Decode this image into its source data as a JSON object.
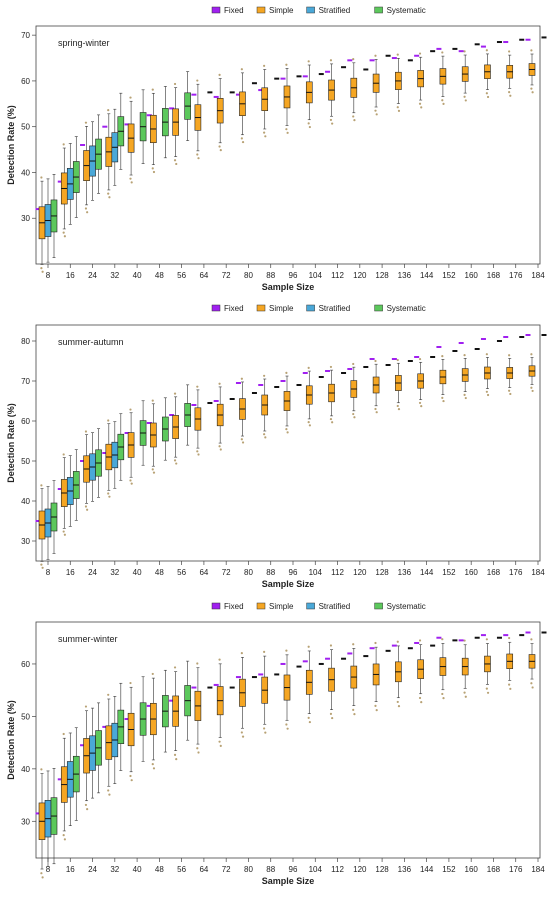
{
  "chart_data": [
    {
      "type": "boxplot",
      "panel_label": "spring-winter",
      "xlabel": "Sample Size",
      "ylabel": "Detection Rate (%)",
      "ylim": [
        20,
        72
      ],
      "yticks": [
        30,
        40,
        50,
        60,
        70
      ],
      "grid": false,
      "legend_position": "top-center",
      "legend": [
        {
          "name": "Fixed",
          "color": "#a020f0"
        },
        {
          "name": "Simple",
          "color": "#f5a623"
        },
        {
          "name": "Stratified",
          "color": "#4aa8d8"
        },
        {
          "name": "Systematic",
          "color": "#5cc85c"
        }
      ],
      "categories": [
        "8",
        "16",
        "24",
        "32",
        "40",
        "48",
        "56",
        "64",
        "72",
        "80",
        "88",
        "96",
        "104",
        "112",
        "120",
        "128",
        "136",
        "144",
        "152",
        "160",
        "168",
        "176",
        "184"
      ],
      "fixed": [
        32,
        38,
        46,
        50,
        50.5,
        52.5,
        54,
        57,
        56.5,
        57,
        58,
        60.5,
        61,
        62,
        64.5,
        64.5,
        65,
        65.5,
        67,
        66.5,
        67.5,
        68.5,
        69
      ],
      "series": [
        {
          "name": "Simple",
          "median": [
            29,
            36.5,
            41.5,
            44.5,
            47.5,
            49.5,
            51,
            52,
            53.5,
            55,
            56,
            56.5,
            57.5,
            58,
            58.5,
            59.5,
            60,
            60.5,
            61,
            61.5,
            62,
            62,
            62.5
          ]
        },
        {
          "name": "Stratified",
          "median": [
            29.5,
            37.5,
            42.5,
            45.5,
            null,
            null,
            null,
            null,
            null,
            null,
            null,
            null,
            null,
            null,
            null,
            null,
            null,
            null,
            null,
            null,
            null,
            null,
            null
          ]
        },
        {
          "name": "Systematic",
          "median": [
            30.5,
            39,
            44,
            49,
            50,
            51,
            54.5,
            57.5,
            57.5,
            59.5,
            60.5,
            61,
            61.5,
            63,
            62.5,
            65.5,
            64.5,
            66.5,
            67,
            68,
            68.5,
            69,
            69.5
          ]
        }
      ]
    },
    {
      "type": "boxplot",
      "panel_label": "summer-autumn",
      "xlabel": "Sample Size",
      "ylabel": "Detection Rate (%)",
      "ylim": [
        25,
        84
      ],
      "yticks": [
        30,
        40,
        50,
        60,
        70,
        80
      ],
      "grid": false,
      "legend_position": "top-center",
      "legend": [
        {
          "name": "Fixed",
          "color": "#a020f0"
        },
        {
          "name": "Simple",
          "color": "#f5a623"
        },
        {
          "name": "Stratified",
          "color": "#4aa8d8"
        },
        {
          "name": "Systematic",
          "color": "#5cc85c"
        }
      ],
      "categories": [
        "8",
        "16",
        "24",
        "32",
        "40",
        "48",
        "56",
        "64",
        "72",
        "80",
        "88",
        "96",
        "104",
        "112",
        "120",
        "128",
        "136",
        "144",
        "152",
        "160",
        "168",
        "176",
        "184"
      ],
      "fixed": [
        35,
        43,
        50,
        52,
        57,
        59.5,
        61.5,
        64,
        65,
        69.5,
        69,
        70,
        72,
        72.5,
        73,
        75.5,
        75.5,
        76,
        78.5,
        79.5,
        80.5,
        81,
        81.5
      ],
      "series": [
        {
          "name": "Simple",
          "median": [
            34,
            42,
            48,
            51,
            54,
            56.5,
            58.5,
            60.5,
            61.5,
            63,
            64,
            65,
            66.5,
            67,
            68,
            69,
            69.5,
            70,
            71,
            71.5,
            72,
            72,
            72.5
          ]
        },
        {
          "name": "Stratified",
          "median": [
            34.5,
            42.5,
            48.5,
            51.5,
            null,
            null,
            null,
            null,
            null,
            null,
            null,
            null,
            null,
            null,
            null,
            null,
            null,
            null,
            null,
            null,
            null,
            null,
            null
          ]
        },
        {
          "name": "Systematic",
          "median": [
            36,
            44,
            49.5,
            53.5,
            57,
            58,
            61.5,
            64.5,
            65.5,
            67,
            68.5,
            69,
            71,
            72,
            73.5,
            74,
            75,
            76,
            77.5,
            78,
            80,
            81,
            81.5
          ]
        }
      ]
    },
    {
      "type": "boxplot",
      "panel_label": "summer-winter",
      "xlabel": "Sample Size",
      "ylabel": "Detection Rate (%)",
      "ylim": [
        23,
        68
      ],
      "yticks": [
        30,
        40,
        50,
        60
      ],
      "grid": false,
      "legend_position": "top-center",
      "legend": [
        {
          "name": "Fixed",
          "color": "#a020f0"
        },
        {
          "name": "Simple",
          "color": "#f5a623"
        },
        {
          "name": "Stratified",
          "color": "#4aa8d8"
        },
        {
          "name": "Systematic",
          "color": "#5cc85c"
        }
      ],
      "categories": [
        "8",
        "16",
        "24",
        "32",
        "40",
        "48",
        "56",
        "64",
        "72",
        "80",
        "88",
        "96",
        "104",
        "112",
        "120",
        "128",
        "136",
        "144",
        "152",
        "160",
        "168",
        "176",
        "184"
      ],
      "fixed": [
        31.5,
        38,
        44.5,
        48,
        49.5,
        52,
        53,
        55.5,
        56,
        57.5,
        58,
        60,
        60.5,
        61,
        62,
        63,
        63.5,
        64,
        65,
        64.5,
        65.5,
        65.5,
        66
      ],
      "series": [
        {
          "name": "Simple",
          "median": [
            30,
            37,
            42.5,
            45,
            47.5,
            49.5,
            51,
            52,
            53,
            54.5,
            55,
            55.5,
            56.5,
            57,
            57.5,
            58,
            58.5,
            59,
            59.5,
            59.5,
            60,
            60.5,
            60.5
          ]
        },
        {
          "name": "Stratified",
          "median": [
            30.5,
            38,
            43,
            45.5,
            null,
            null,
            null,
            null,
            null,
            null,
            null,
            null,
            null,
            null,
            null,
            null,
            null,
            null,
            null,
            null,
            null,
            null,
            null
          ]
        },
        {
          "name": "Systematic",
          "median": [
            31,
            39,
            44,
            48,
            49.5,
            51,
            53,
            55.5,
            55.5,
            57.5,
            58,
            59.5,
            60,
            61,
            61.5,
            62.5,
            63,
            63.5,
            64.5,
            65,
            65,
            65.5,
            66
          ]
        }
      ]
    }
  ]
}
